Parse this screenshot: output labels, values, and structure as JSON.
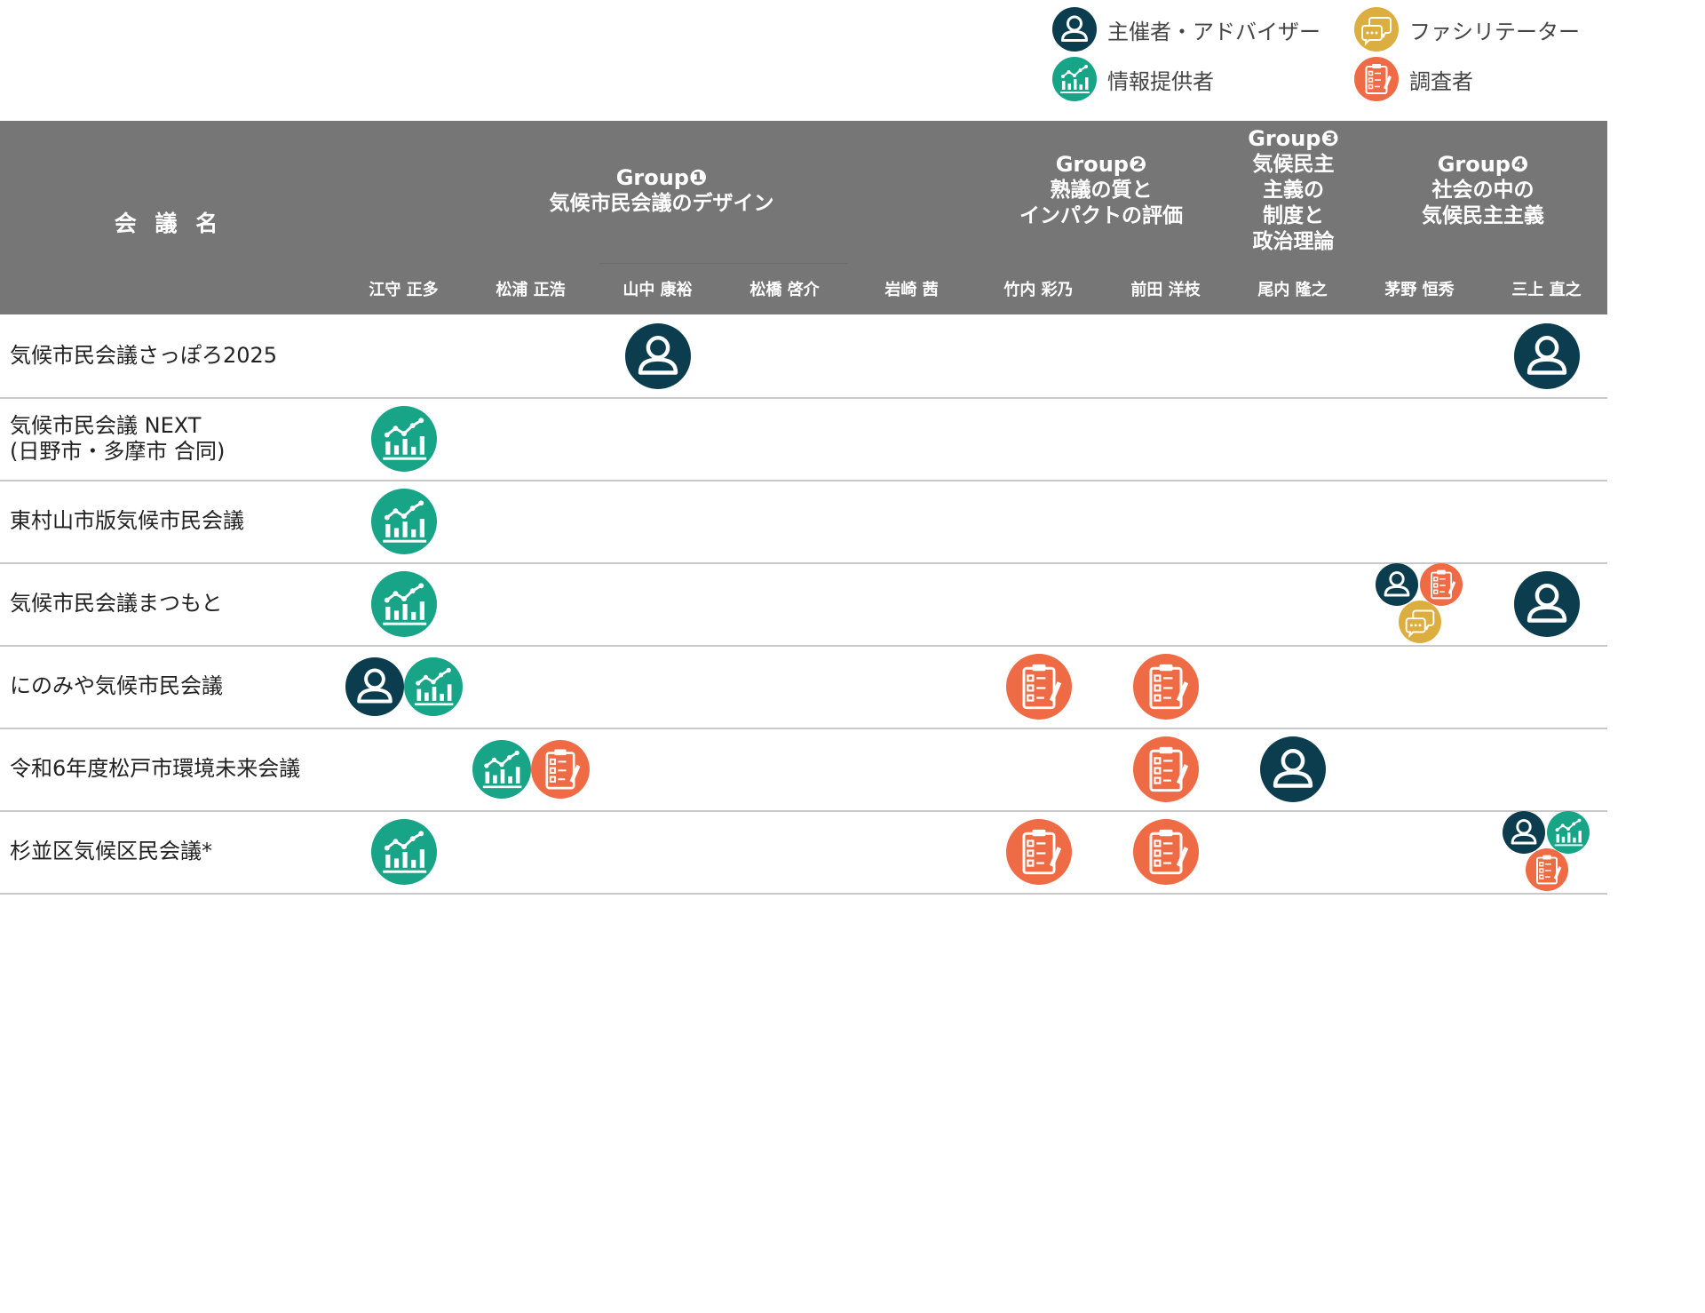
{
  "legend": {
    "organizer": "主催者・アドバイザー",
    "facilitator": "ファシリテーター",
    "informant": "情報提供者",
    "investigator": "調査者"
  },
  "header": {
    "name_col": "会 議 名",
    "groups": [
      {
        "label": "Group❶",
        "title_lines": [
          "気候市民会議のデザイン"
        ]
      },
      {
        "label": "Group❷",
        "title_lines": [
          "熟議の質と",
          "インパクトの評価"
        ]
      },
      {
        "label": "Group❸",
        "title_lines": [
          "気候民主",
          "主義の",
          "制度と",
          "政治理論"
        ]
      },
      {
        "label": "Group❹",
        "title_lines": [
          "社会の中の",
          "気候民主主義"
        ]
      }
    ],
    "members": [
      "江守 正多",
      "松浦 正浩",
      "山中 康裕",
      "松橋 啓介",
      "岩崎 茜",
      "竹内 彩乃",
      "前田 洋枝",
      "尾内 隆之",
      "茅野 恒秀",
      "三上 直之"
    ]
  },
  "rows": [
    {
      "name_lines": [
        "気候市民会議さっぽろ2025"
      ]
    },
    {
      "name_lines": [
        "気候市民会議 NEXT",
        "(日野市・多摩市 合同)"
      ]
    },
    {
      "name_lines": [
        "東村山市版気候市民会議"
      ]
    },
    {
      "name_lines": [
        "気候市民会議まつもと"
      ]
    },
    {
      "name_lines": [
        "にのみや気候市民会議"
      ]
    },
    {
      "name_lines": [
        "令和6年度松戸市環境未来会議"
      ]
    },
    {
      "name_lines": [
        "杉並区気候区民会議*"
      ]
    }
  ],
  "assignments": [
    [
      {
        "member": 2,
        "roles": [
          "organizer"
        ]
      },
      {
        "member": 9,
        "roles": [
          "organizer"
        ]
      }
    ],
    [
      {
        "member": 0,
        "roles": [
          "informant"
        ]
      }
    ],
    [
      {
        "member": 0,
        "roles": [
          "informant"
        ]
      }
    ],
    [
      {
        "member": 0,
        "roles": [
          "informant"
        ]
      },
      {
        "member": 8,
        "roles": [
          "organizer",
          "investigator",
          "facilitator"
        ]
      },
      {
        "member": 9,
        "roles": [
          "organizer"
        ]
      }
    ],
    [
      {
        "member": 0,
        "roles": [
          "organizer",
          "informant"
        ]
      },
      {
        "member": 5,
        "roles": [
          "investigator"
        ]
      },
      {
        "member": 6,
        "roles": [
          "investigator"
        ]
      }
    ],
    [
      {
        "member": 1,
        "roles": [
          "informant",
          "investigator"
        ]
      },
      {
        "member": 6,
        "roles": [
          "investigator"
        ]
      },
      {
        "member": 7,
        "roles": [
          "organizer"
        ]
      }
    ],
    [
      {
        "member": 0,
        "roles": [
          "informant"
        ]
      },
      {
        "member": 5,
        "roles": [
          "investigator"
        ]
      },
      {
        "member": 6,
        "roles": [
          "investigator"
        ]
      },
      {
        "member": 9,
        "roles": [
          "organizer",
          "informant",
          "investigator"
        ]
      }
    ]
  ],
  "colors": {
    "organizer": "#0b3d4e",
    "informant": "#17a487",
    "facilitator": "#dcae3f",
    "investigator": "#ee6b45",
    "header_bg": "#767676"
  }
}
